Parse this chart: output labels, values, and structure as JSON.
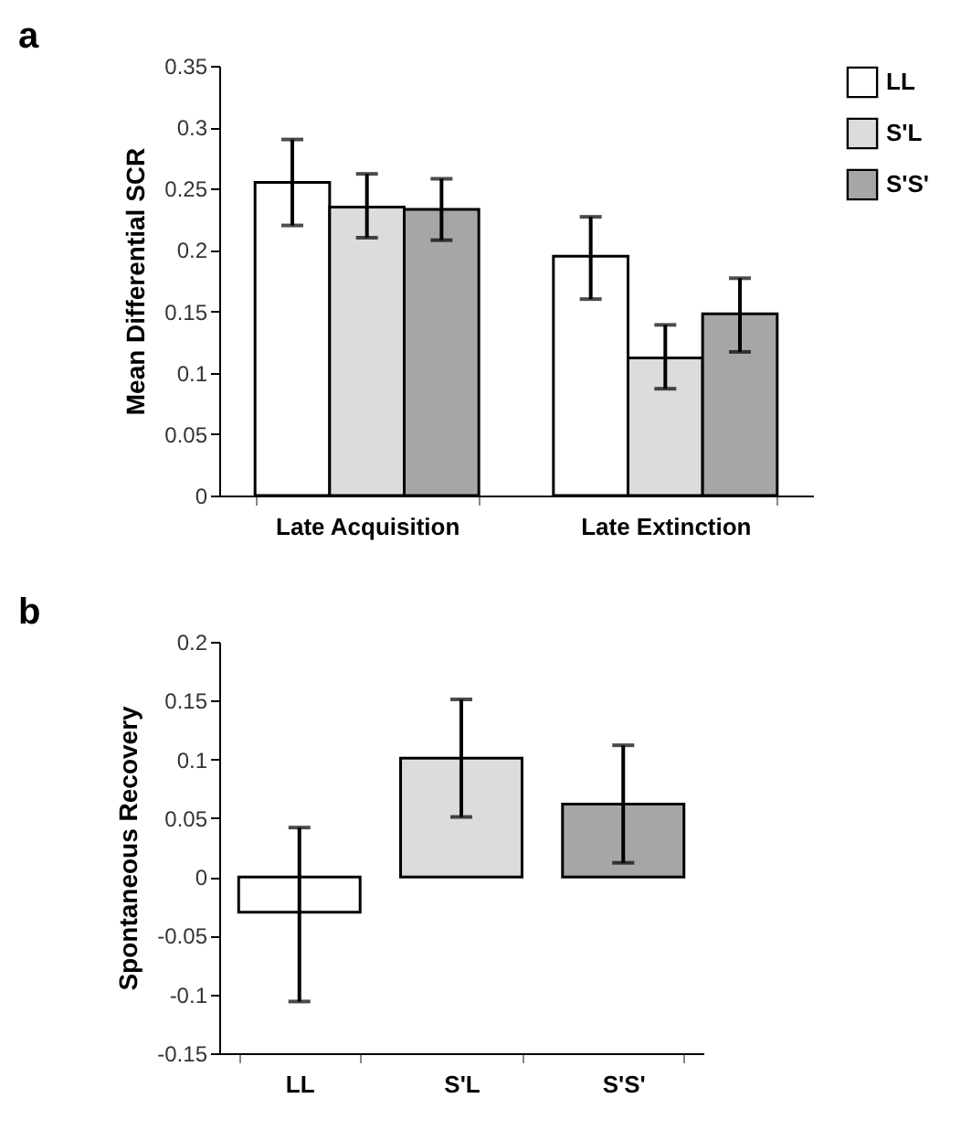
{
  "chart_data": [
    {
      "type": "bar",
      "title": "a",
      "ylabel": "Mean Differential SCR",
      "categories": [
        "Late Acquisition",
        "Late Extinction"
      ],
      "series": [
        {
          "name": "LL",
          "color": "#ffffff",
          "values": [
            0.255,
            0.195
          ],
          "errors": [
            [
              0.22,
              0.29
            ],
            [
              0.16,
              0.227
            ]
          ]
        },
        {
          "name": "S'L",
          "color": "#dcdcdc",
          "values": [
            0.235,
            0.112
          ],
          "errors": [
            [
              0.21,
              0.262
            ],
            [
              0.087,
              0.139
            ]
          ]
        },
        {
          "name": "S'S'",
          "color": "#a6a6a6",
          "values": [
            0.233,
            0.148
          ],
          "errors": [
            [
              0.208,
              0.258
            ],
            [
              0.117,
              0.177
            ]
          ]
        }
      ],
      "ylim": [
        0,
        0.35
      ],
      "yticks": [
        0,
        0.05,
        0.1,
        0.15,
        0.2,
        0.25,
        0.3,
        0.35
      ],
      "grid": false,
      "legend": "right"
    },
    {
      "type": "bar",
      "title": "b",
      "ylabel": "Spontaneous Recovery",
      "categories": [
        "LL",
        "S'L",
        "S'S'"
      ],
      "values": [
        -0.03,
        0.101,
        0.062
      ],
      "colors": [
        "#ffffff",
        "#dcdcdc",
        "#a6a6a6"
      ],
      "errors": [
        [
          -0.106,
          0.042
        ],
        [
          0.051,
          0.151
        ],
        [
          0.012,
          0.112
        ]
      ],
      "ylim": [
        -0.15,
        0.2
      ],
      "yticks": [
        -0.15,
        -0.1,
        -0.05,
        0,
        0.05,
        0.1,
        0.15,
        0.2
      ],
      "grid": false,
      "legend": false
    }
  ]
}
